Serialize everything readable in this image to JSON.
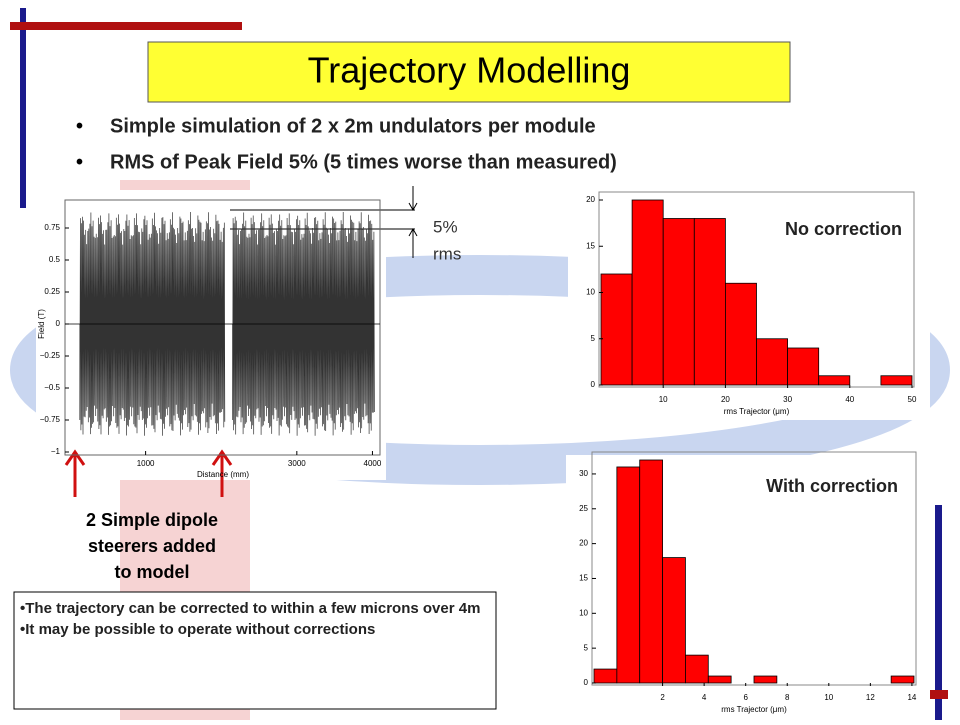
{
  "slide": {
    "title": "Trajectory Modelling",
    "bullets": [
      "Simple simulation of 2 x 2m undulators per module",
      "RMS of Peak Field 5% (5 times worse than measured)"
    ],
    "field_plot": {
      "ylabel": "Field (T)",
      "xlabel": "Distance (mm)",
      "xlim": [
        0,
        4100
      ],
      "ylim": [
        -1,
        1
      ],
      "xticks": [
        1000,
        3000,
        4000
      ],
      "yticks": [
        0.75,
        0.5,
        0.25,
        0,
        {
          "value": -0.25,
          "label": "−0.25"
        },
        {
          "value": -0.5,
          "label": "−0.5"
        },
        {
          "value": -0.75,
          "label": "−0.75"
        },
        {
          "value": -1,
          "label": "−1"
        }
      ]
    },
    "annotation": [
      "5%",
      "rms"
    ],
    "steerer_note": [
      "2 Simple dipole",
      "steerers added",
      "to model"
    ],
    "hist_no": {
      "label": "No correction",
      "xlabel": "rms Trajector (μm)",
      "xlim": [
        0,
        50
      ],
      "ylim": [
        0,
        20
      ],
      "xticks": [
        10,
        20,
        30,
        40,
        50
      ],
      "yticks": [
        0,
        5,
        10,
        15,
        20
      ],
      "bins": [
        0,
        5,
        10,
        15,
        20,
        25,
        30,
        35,
        40,
        45,
        50
      ],
      "counts": [
        12,
        20,
        18,
        18,
        11,
        5,
        4,
        1,
        0,
        1
      ]
    },
    "hist_with": {
      "label": "With correction",
      "xlabel": "rms Trajector (μm)",
      "xlim": [
        -1.3,
        14.1
      ],
      "ylim": [
        0,
        32
      ],
      "xticks": [
        2,
        4,
        6,
        8,
        10,
        12,
        14
      ],
      "yticks": [
        0,
        5,
        10,
        15,
        20,
        25,
        30
      ],
      "bins": [
        -1.3,
        -0.2,
        0.9,
        2.0,
        3.1,
        4.2,
        5.3,
        6.4,
        7.5,
        8.6,
        9.7,
        10.8,
        11.9,
        13.0,
        14.1
      ],
      "counts": [
        2,
        31,
        32,
        18,
        4,
        1,
        0,
        1,
        0,
        0,
        0,
        0,
        0,
        1
      ]
    },
    "summary": [
      "The trajectory can be corrected to within a few microns over 4m",
      "It may be possible to operate without corrections"
    ]
  }
}
